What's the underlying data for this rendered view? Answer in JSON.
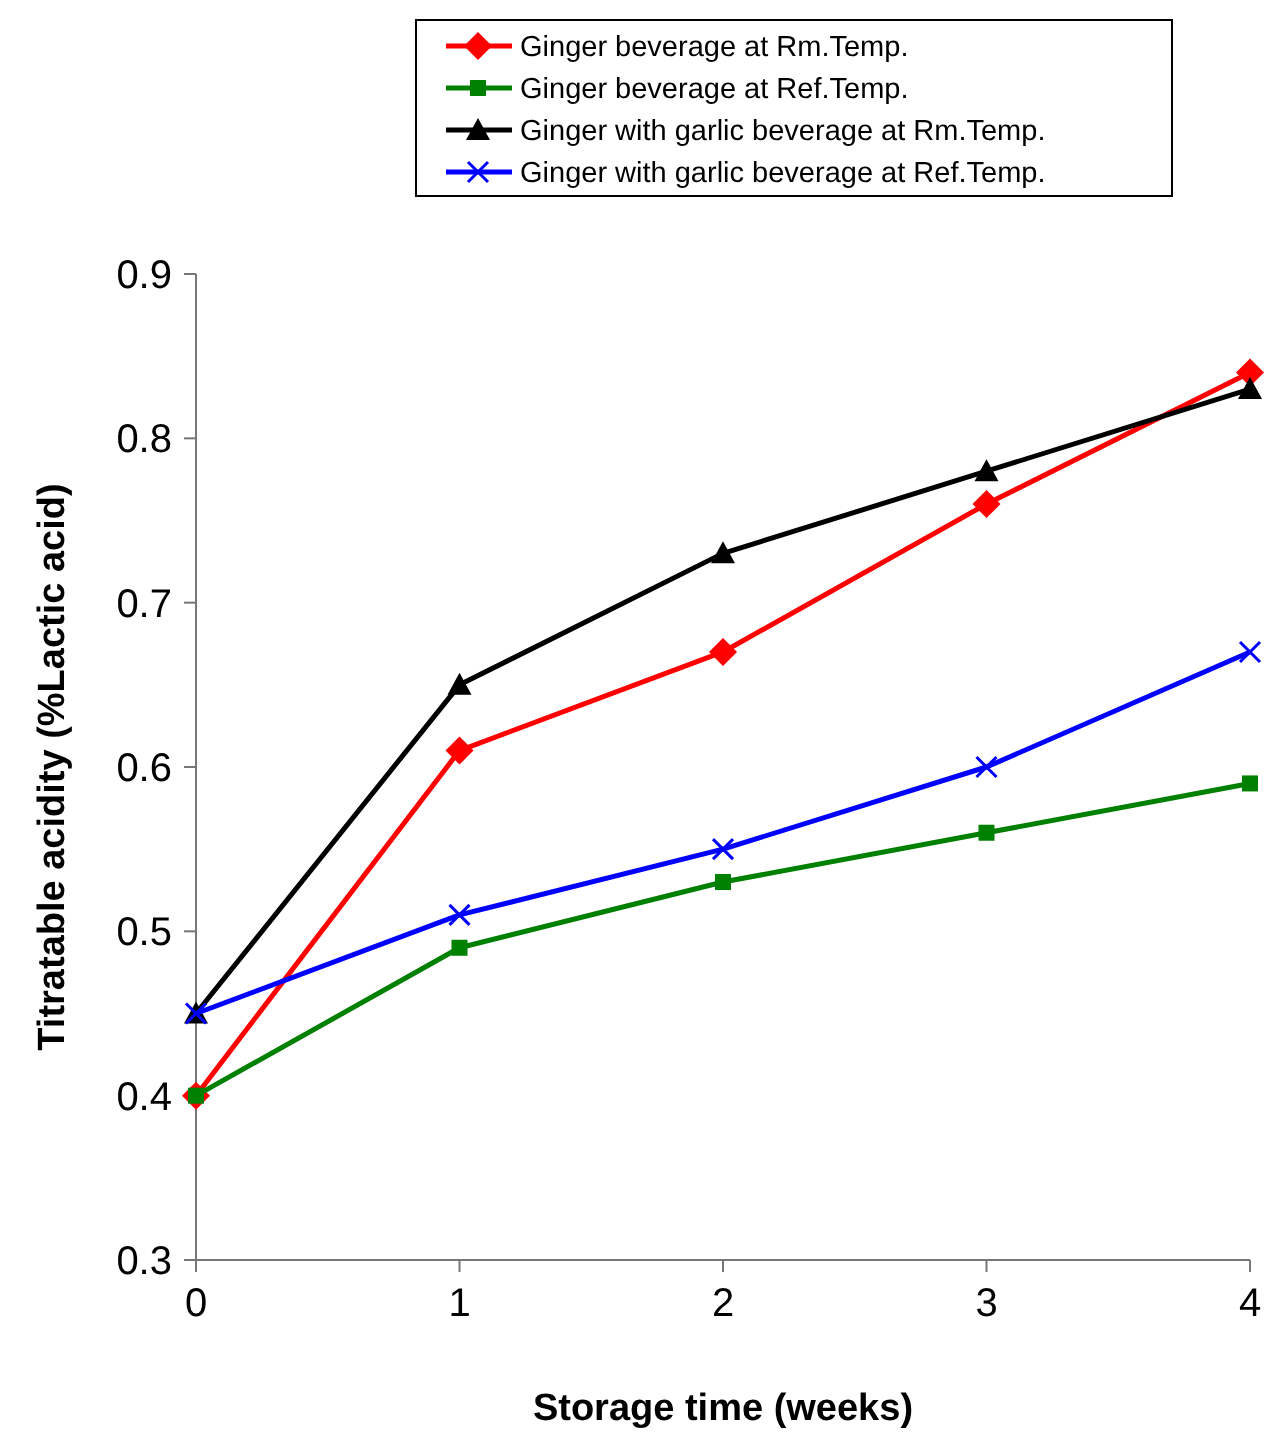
{
  "chart_data": {
    "type": "line",
    "xlabel": "Storage time (weeks)",
    "ylabel": "Titratable acidity (%Lactic acid)",
    "x": [
      0,
      1,
      2,
      3,
      4
    ],
    "xlim": [
      0,
      4
    ],
    "xticks": [
      0,
      1,
      2,
      3,
      4
    ],
    "ylim": [
      0.3,
      0.9
    ],
    "yticks": [
      0.3,
      0.4,
      0.5,
      0.6,
      0.7,
      0.8,
      0.9
    ],
    "grid": false,
    "legend": "top",
    "series": [
      {
        "name": "Ginger beverage at Rm.Temp.",
        "color": "#ff0000",
        "marker": "diamond",
        "values": [
          0.4,
          0.61,
          0.67,
          0.76,
          0.84
        ]
      },
      {
        "name": "Ginger beverage at Ref.Temp.",
        "color": "#008000",
        "marker": "square",
        "values": [
          0.4,
          0.49,
          0.53,
          0.56,
          0.59
        ]
      },
      {
        "name": "Ginger with garlic beverage at Rm.Temp.",
        "color": "#000000",
        "marker": "triangle",
        "values": [
          0.45,
          0.65,
          0.73,
          0.78,
          0.83
        ]
      },
      {
        "name": "Ginger with garlic beverage at Ref.Temp.",
        "color": "#0000ff",
        "marker": "cross",
        "values": [
          0.45,
          0.51,
          0.55,
          0.6,
          0.67
        ]
      }
    ]
  }
}
